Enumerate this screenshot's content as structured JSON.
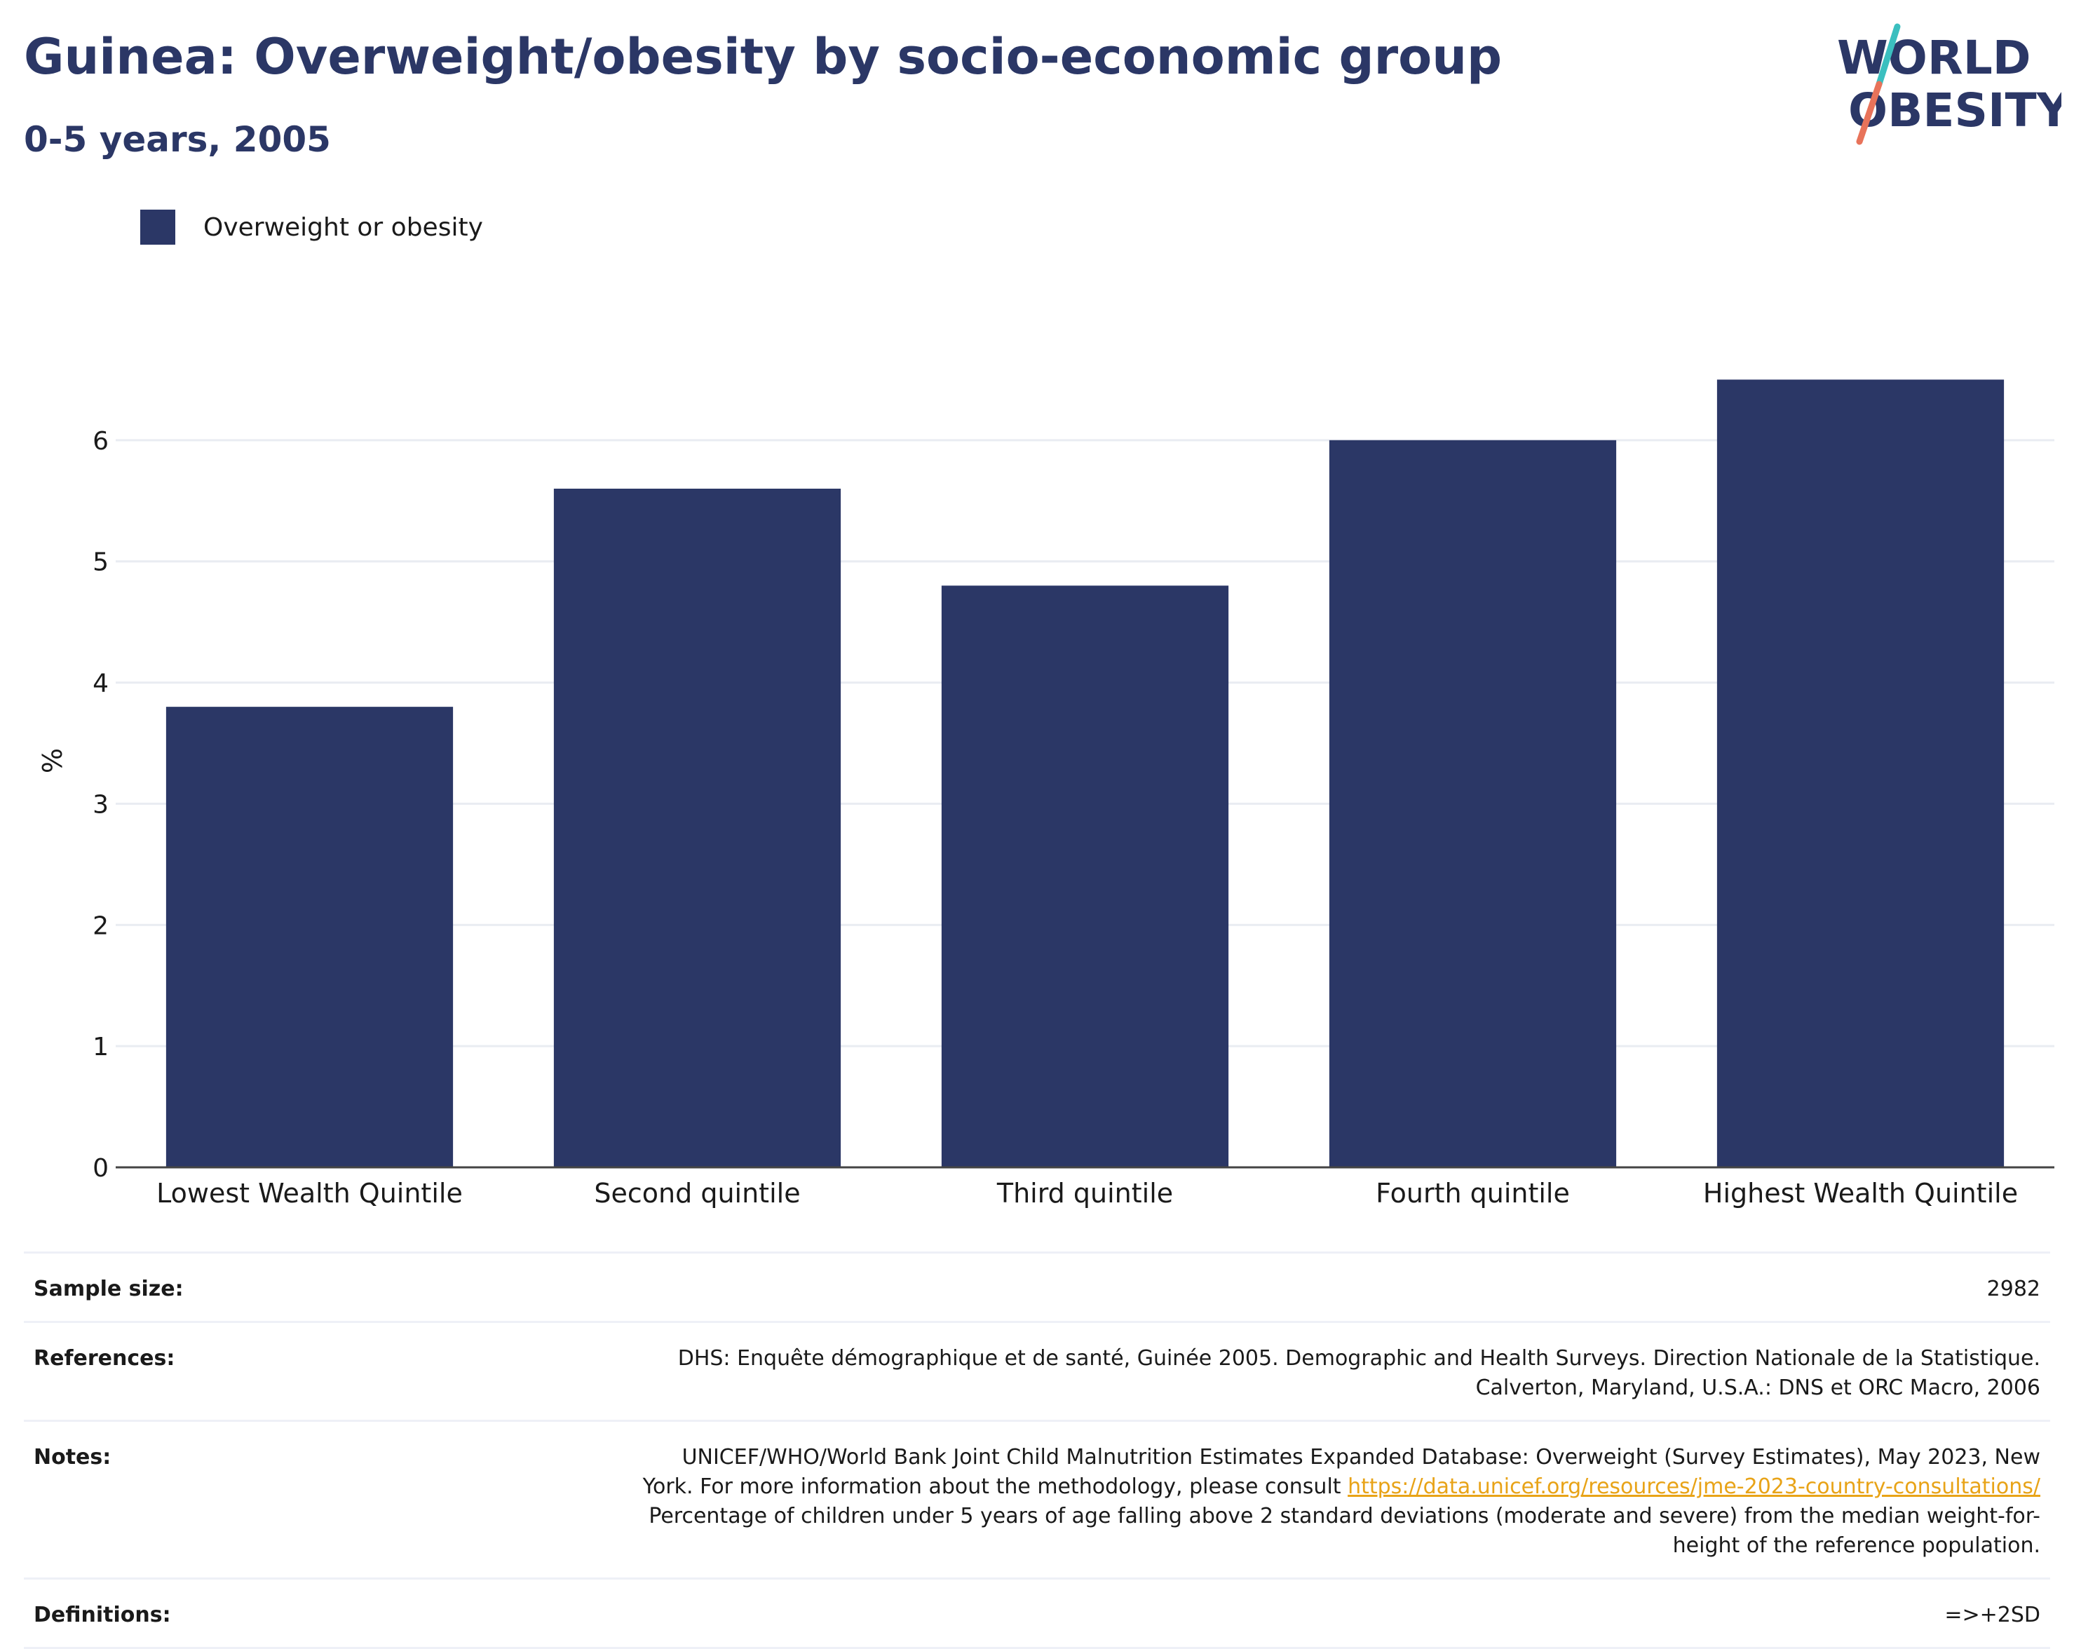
{
  "header": {
    "title": "Guinea: Overweight/obesity by socio-economic group",
    "subtitle": "0-5 years, 2005"
  },
  "logo": {
    "line1": "WORLD",
    "line2": "OBESITY",
    "colors": {
      "text": "#2b3766",
      "slash_top": "#3bbfbf",
      "slash_bottom": "#e8735a"
    }
  },
  "legend": {
    "label": "Overweight or obesity",
    "color": "#2b3766"
  },
  "chart_data": {
    "type": "bar",
    "categories": [
      "Lowest Wealth Quintile",
      "Second quintile",
      "Third quintile",
      "Fourth quintile",
      "Highest Wealth Quintile"
    ],
    "series": [
      {
        "name": "Overweight or obesity",
        "values": [
          3.8,
          5.6,
          4.8,
          6.0,
          6.5
        ],
        "color": "#2b3766"
      }
    ],
    "title": "",
    "xlabel": "",
    "ylabel": "%",
    "ylim": [
      0,
      7
    ],
    "yticks": [
      0,
      1,
      2,
      3,
      4,
      5,
      6
    ],
    "grid": true,
    "legend_position": "top-left"
  },
  "info": {
    "sample_size": {
      "label": "Sample size:",
      "value": "2982"
    },
    "references": {
      "label": "References:",
      "lines": [
        "DHS: Enquête démographique et de santé, Guinée 2005. Demographic and Health Surveys. Direction Nationale de la Statistique.",
        "Calverton, Maryland, U.S.A.: DNS et ORC Macro, 2006"
      ]
    },
    "notes": {
      "label": "Notes:",
      "line1": "UNICEF/WHO/World Bank Joint Child Malnutrition Estimates Expanded Database: Overweight (Survey Estimates), May 2023, New",
      "line2_prefix": "York. For more information about the methodology, please consult ",
      "link": "https://data.unicef.org/resources/jme-2023-country-consultations/",
      "line3": "Percentage of children under 5 years of age falling above 2 standard deviations (moderate and severe) from the median weight-for-",
      "line4": "height of the reference population."
    },
    "definitions": {
      "label": "Definitions:",
      "value": "=>+2SD"
    }
  }
}
